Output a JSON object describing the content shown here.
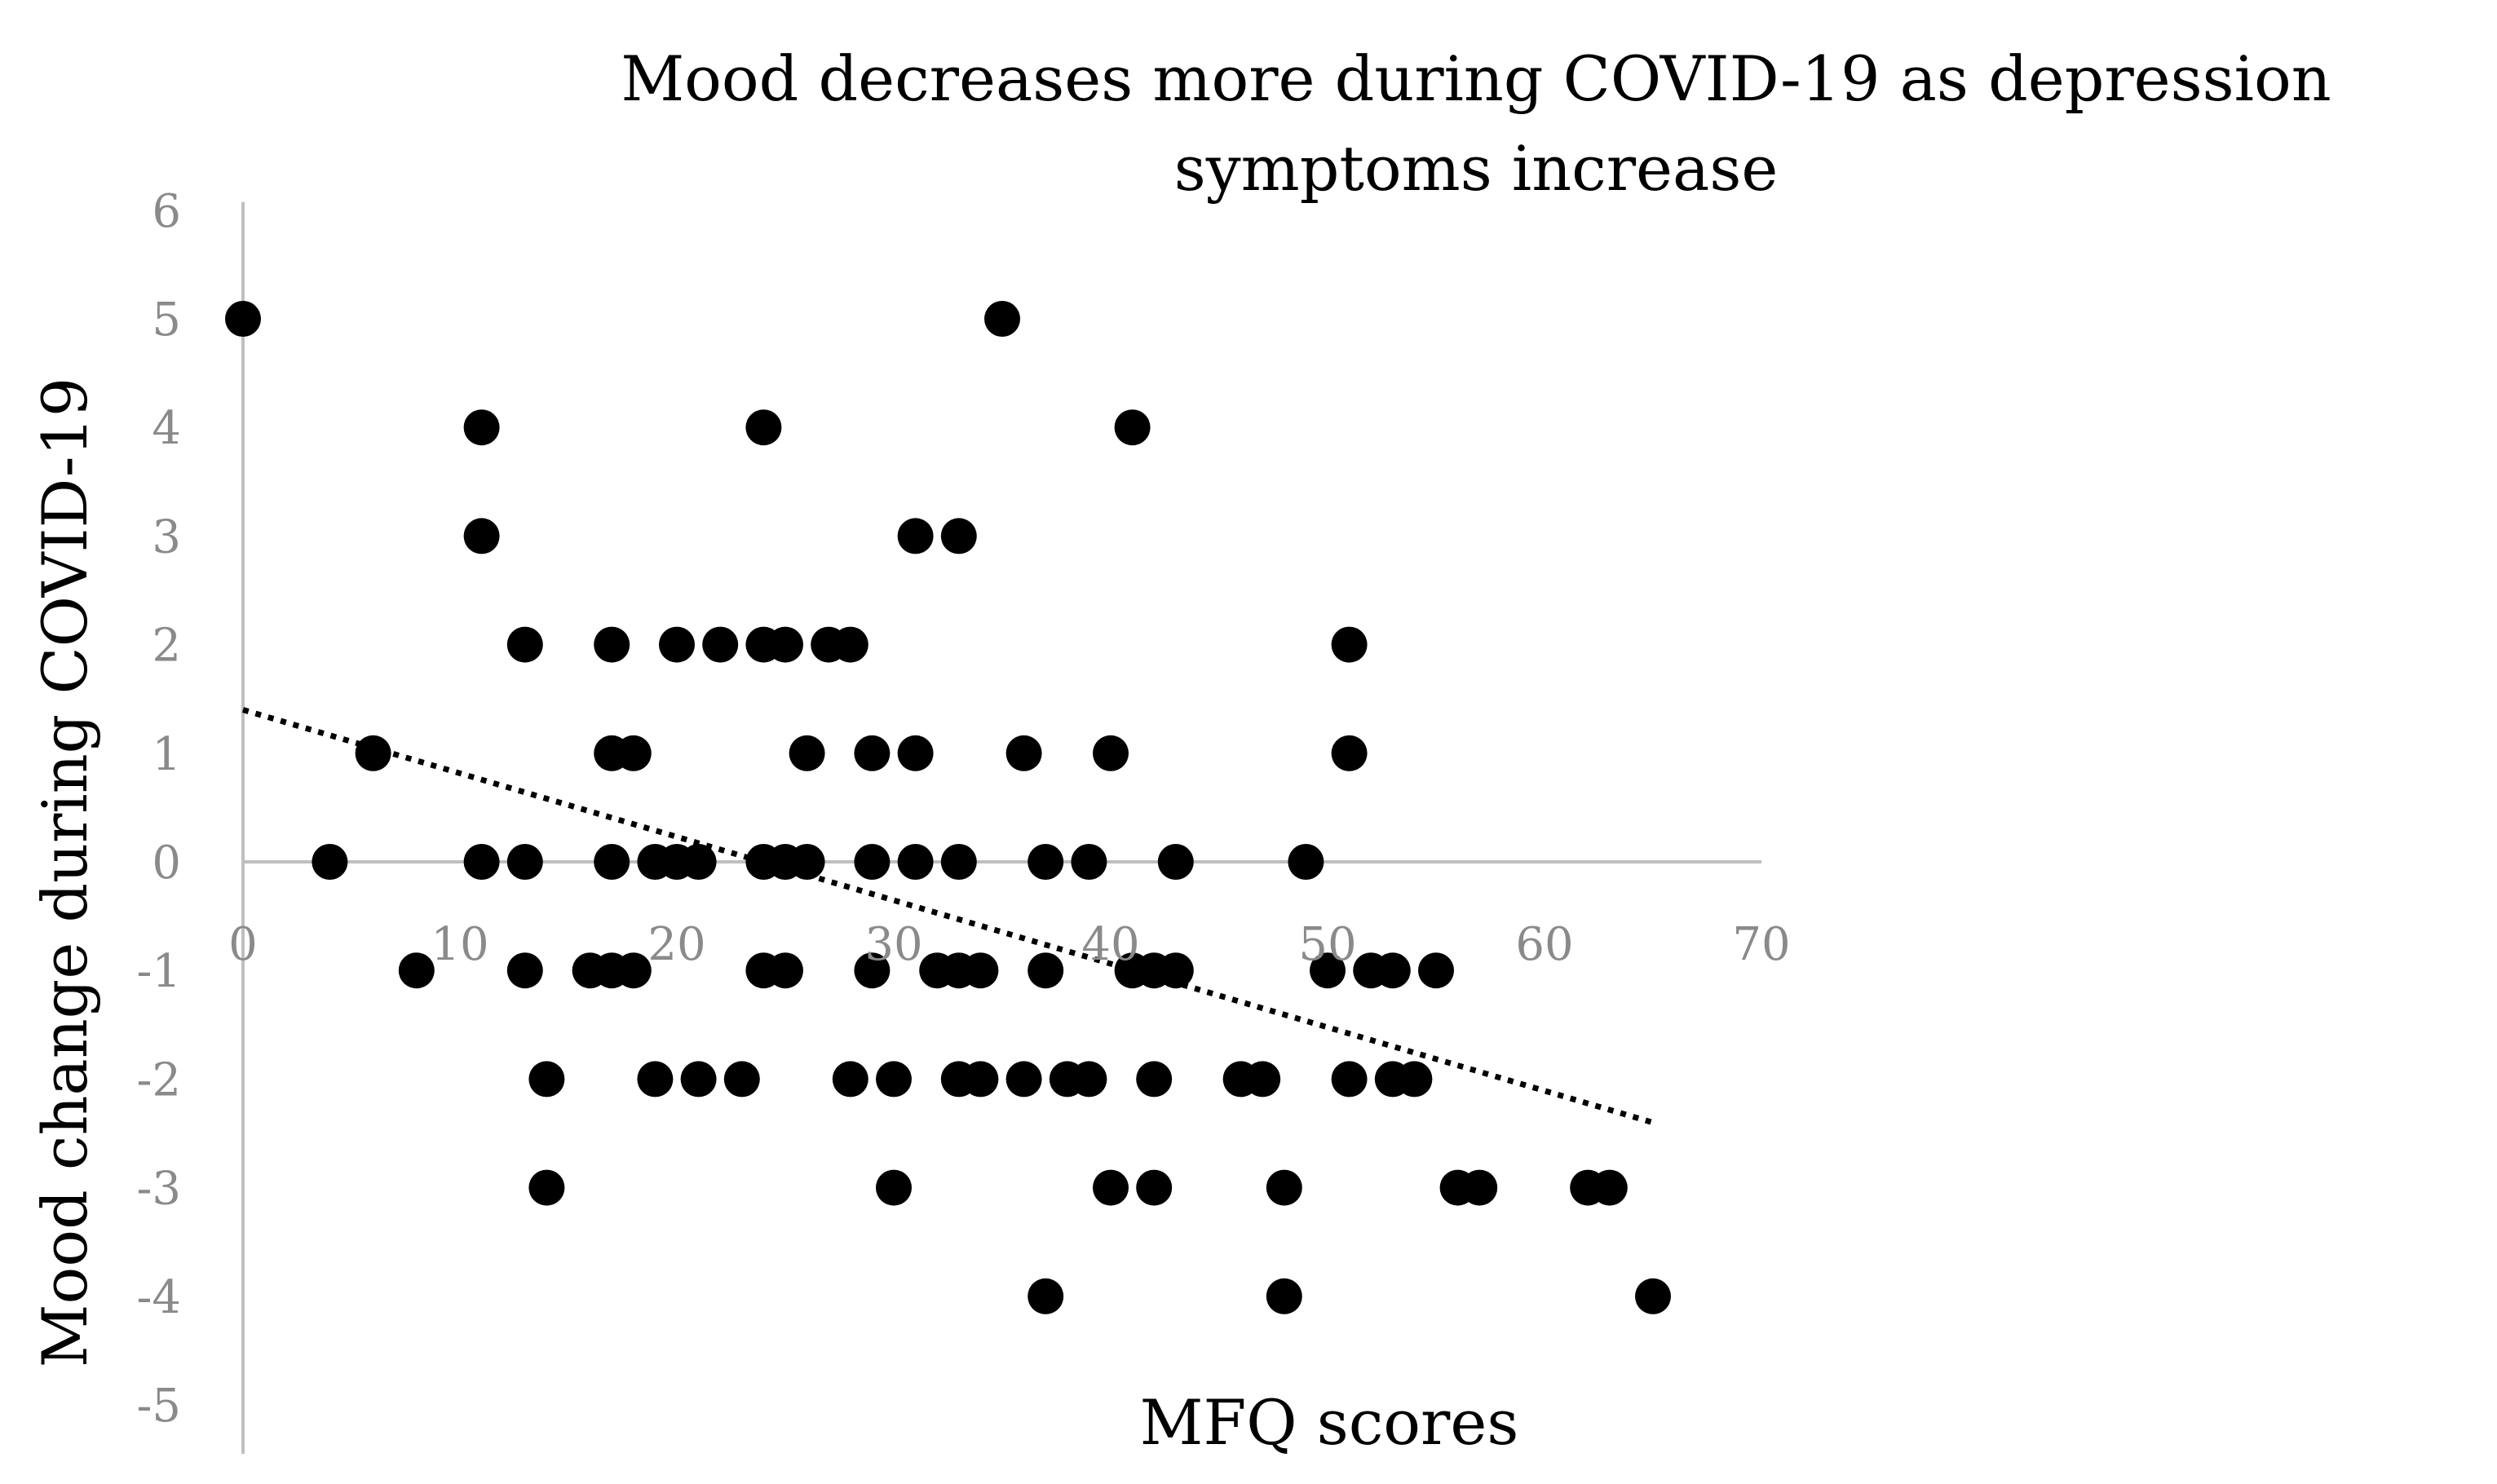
{
  "chart_data": {
    "type": "scatter",
    "title": "Mood decreases more during COVID-19 as depression symptoms increase",
    "xlabel": "MFQ scores",
    "ylabel": "Mood change during COVID-19",
    "xlim": [
      0,
      70
    ],
    "ylim": [
      -5,
      6
    ],
    "x_ticks": [
      0,
      10,
      20,
      30,
      40,
      50,
      60,
      70
    ],
    "y_ticks": [
      6,
      5,
      4,
      3,
      2,
      1,
      0,
      -1,
      -2,
      -3,
      -4,
      -5
    ],
    "marker_color": "#000000",
    "trendline": {
      "style": "dotted",
      "x": [
        0,
        65
      ],
      "y": [
        1.4,
        -2.4
      ]
    },
    "points": [
      [
        0,
        5
      ],
      [
        4,
        0
      ],
      [
        6,
        1
      ],
      [
        8,
        -1
      ],
      [
        11,
        4
      ],
      [
        11,
        3
      ],
      [
        11,
        0
      ],
      [
        13,
        2
      ],
      [
        13,
        0
      ],
      [
        13,
        -1
      ],
      [
        14,
        -2
      ],
      [
        14,
        -3
      ],
      [
        16,
        -1
      ],
      [
        17,
        2
      ],
      [
        17,
        1
      ],
      [
        17,
        0
      ],
      [
        17,
        -1
      ],
      [
        18,
        1
      ],
      [
        18,
        -1
      ],
      [
        19,
        0
      ],
      [
        19,
        -2
      ],
      [
        20,
        2
      ],
      [
        20,
        0
      ],
      [
        21,
        0
      ],
      [
        21,
        -2
      ],
      [
        22,
        2
      ],
      [
        23,
        -2
      ],
      [
        24,
        4
      ],
      [
        24,
        2
      ],
      [
        24,
        0
      ],
      [
        24,
        -1
      ],
      [
        25,
        2
      ],
      [
        25,
        0
      ],
      [
        25,
        -1
      ],
      [
        26,
        1
      ],
      [
        26,
        0
      ],
      [
        27,
        2
      ],
      [
        28,
        2
      ],
      [
        28,
        -2
      ],
      [
        29,
        1
      ],
      [
        29,
        0
      ],
      [
        29,
        -1
      ],
      [
        30,
        -2
      ],
      [
        30,
        -3
      ],
      [
        31,
        3
      ],
      [
        31,
        1
      ],
      [
        31,
        0
      ],
      [
        32,
        -1
      ],
      [
        33,
        3
      ],
      [
        33,
        0
      ],
      [
        33,
        -1
      ],
      [
        33,
        -2
      ],
      [
        34,
        -1
      ],
      [
        34,
        -2
      ],
      [
        35,
        5
      ],
      [
        36,
        1
      ],
      [
        36,
        -2
      ],
      [
        37,
        0
      ],
      [
        37,
        -1
      ],
      [
        37,
        -4
      ],
      [
        38,
        -2
      ],
      [
        39,
        0
      ],
      [
        39,
        -2
      ],
      [
        40,
        1
      ],
      [
        40,
        -3
      ],
      [
        41,
        4
      ],
      [
        41,
        -1
      ],
      [
        42,
        -1
      ],
      [
        42,
        -2
      ],
      [
        42,
        -3
      ],
      [
        43,
        0
      ],
      [
        43,
        -1
      ],
      [
        46,
        -2
      ],
      [
        47,
        -2
      ],
      [
        48,
        -3
      ],
      [
        48,
        -4
      ],
      [
        49,
        0
      ],
      [
        50,
        -1
      ],
      [
        51,
        2
      ],
      [
        51,
        1
      ],
      [
        51,
        -2
      ],
      [
        52,
        -1
      ],
      [
        53,
        -1
      ],
      [
        53,
        -2
      ],
      [
        54,
        -2
      ],
      [
        55,
        -1
      ],
      [
        56,
        -3
      ],
      [
        57,
        -3
      ],
      [
        62,
        -3
      ],
      [
        63,
        -3
      ],
      [
        65,
        -4
      ]
    ]
  }
}
